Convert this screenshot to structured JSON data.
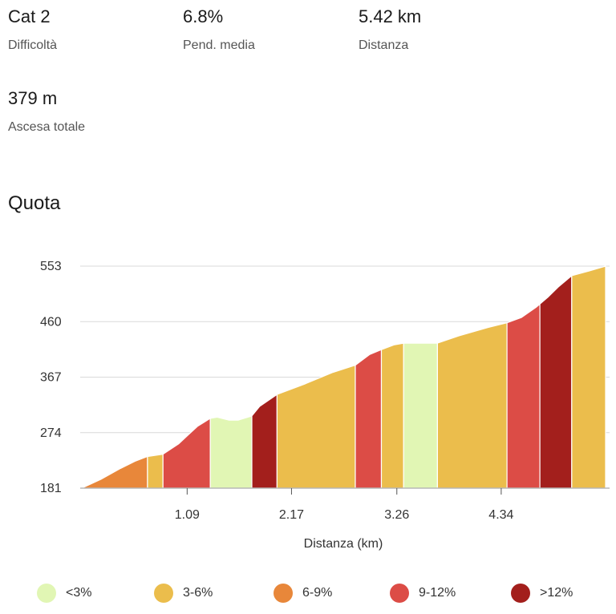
{
  "stats": [
    {
      "value": "Cat 2",
      "label": "Difficoltà"
    },
    {
      "value": "6.8%",
      "label": "Pend. media"
    },
    {
      "value": "5.42 km",
      "label": "Distanza"
    },
    {
      "value": "379 m",
      "label": "Ascesa totale"
    }
  ],
  "section_title": "Quota",
  "colors": {
    "lt3": "#e1f6b4",
    "c3_6": "#ebbd4c",
    "c6_9": "#e8873a",
    "c9_12": "#dc4c46",
    "gt12": "#a31f1c",
    "grid": "#d9d9d9",
    "axis": "#aaaaaa"
  },
  "chart_data": {
    "type": "area",
    "title": "",
    "xlabel": "Distanza (km)",
    "ylabel": "",
    "xlim": [
      0,
      5.42
    ],
    "ylim": [
      181,
      553
    ],
    "y_ticks": [
      "181",
      "274",
      "367",
      "460",
      "553"
    ],
    "x_ticks": [
      "1.09",
      "2.17",
      "3.26",
      "4.34"
    ],
    "points": [
      [
        0.0,
        181
      ],
      [
        0.2,
        196
      ],
      [
        0.4,
        214
      ],
      [
        0.55,
        226
      ],
      [
        0.68,
        234
      ],
      [
        0.84,
        238
      ],
      [
        1.0,
        255
      ],
      [
        1.1,
        270
      ],
      [
        1.2,
        285
      ],
      [
        1.33,
        298
      ],
      [
        1.4,
        300
      ],
      [
        1.52,
        295
      ],
      [
        1.62,
        295
      ],
      [
        1.76,
        302
      ],
      [
        1.84,
        318
      ],
      [
        2.02,
        338
      ],
      [
        2.3,
        355
      ],
      [
        2.6,
        375
      ],
      [
        2.83,
        387
      ],
      [
        2.98,
        405
      ],
      [
        3.1,
        413
      ],
      [
        3.23,
        421
      ],
      [
        3.33,
        424
      ],
      [
        3.55,
        424
      ],
      [
        3.68,
        424
      ],
      [
        3.9,
        436
      ],
      [
        4.2,
        450
      ],
      [
        4.4,
        458
      ],
      [
        4.55,
        467
      ],
      [
        4.7,
        484
      ],
      [
        4.83,
        502
      ],
      [
        4.93,
        518
      ],
      [
        5.07,
        537
      ],
      [
        5.25,
        545
      ],
      [
        5.42,
        553
      ]
    ],
    "segments": [
      {
        "from": 0.0,
        "to": 0.68,
        "band": "6-9%"
      },
      {
        "from": 0.68,
        "to": 0.84,
        "band": "3-6%"
      },
      {
        "from": 0.84,
        "to": 1.33,
        "band": "9-12%"
      },
      {
        "from": 1.33,
        "to": 1.76,
        "band": "<3%"
      },
      {
        "from": 1.76,
        "to": 2.02,
        "band": ">12%"
      },
      {
        "from": 2.02,
        "to": 2.83,
        "band": "3-6%"
      },
      {
        "from": 2.83,
        "to": 3.1,
        "band": "9-12%"
      },
      {
        "from": 3.1,
        "to": 3.33,
        "band": "3-6%"
      },
      {
        "from": 3.33,
        "to": 3.68,
        "band": "<3%"
      },
      {
        "from": 3.68,
        "to": 4.4,
        "band": "3-6%"
      },
      {
        "from": 4.4,
        "to": 4.74,
        "band": "9-12%"
      },
      {
        "from": 4.74,
        "to": 5.07,
        "band": ">12%"
      },
      {
        "from": 5.07,
        "to": 5.42,
        "band": "3-6%"
      }
    ],
    "legend": [
      {
        "label": "<3%",
        "color": "#e1f6b4"
      },
      {
        "label": "3-6%",
        "color": "#ebbd4c"
      },
      {
        "label": "6-9%",
        "color": "#e8873a"
      },
      {
        "label": "9-12%",
        "color": "#dc4c46"
      },
      {
        "label": ">12%",
        "color": "#a31f1c"
      }
    ]
  }
}
